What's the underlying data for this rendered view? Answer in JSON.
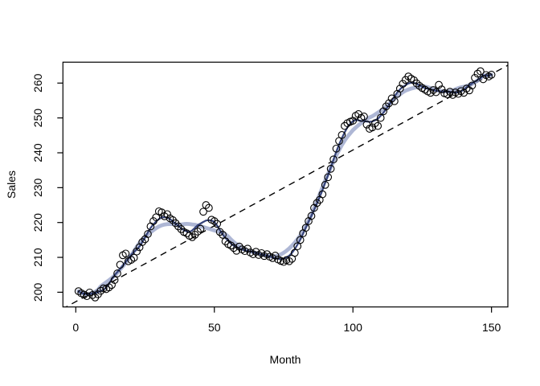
{
  "figure": {
    "background": "#ffffff",
    "frame_color": "#000000"
  },
  "chart_data": {
    "type": "scatter",
    "title": "",
    "xlabel": "Month",
    "ylabel": "Sales",
    "x_ticks": [
      0,
      50,
      100,
      150
    ],
    "y_ticks": [
      200,
      210,
      220,
      230,
      240,
      250,
      260
    ],
    "xlim": [
      -5,
      156
    ],
    "ylim": [
      195.8,
      266.2
    ],
    "grid": false,
    "legend": "none",
    "point_style": {
      "marker": "open-circle",
      "color": "#000000",
      "radius": 4.3,
      "stroke_width": 1.1
    },
    "smooth_line": {
      "name": "smooth-trend",
      "color": "#35437a",
      "width": 2.2,
      "window": 9
    },
    "smooth_band": {
      "name": "smooth-trend-band",
      "color": "#9aa5cb",
      "width": 4.8,
      "opacity": 0.8,
      "window": 17
    },
    "trend_line": {
      "name": "linear-trend",
      "style": "dashed",
      "color": "#000000",
      "intercept": 197.3,
      "slope": 0.435,
      "dash": [
        8,
        6
      ],
      "width": 1.4
    },
    "points": [
      [
        1,
        200.3
      ],
      [
        2,
        199.7
      ],
      [
        3,
        199.3
      ],
      [
        4,
        198.9
      ],
      [
        5,
        199.9
      ],
      [
        6,
        199.2
      ],
      [
        7,
        198.5
      ],
      [
        8,
        199.4
      ],
      [
        9,
        200.4
      ],
      [
        10,
        201.1
      ],
      [
        11,
        200.9
      ],
      [
        12,
        201.4
      ],
      [
        13,
        202.1
      ],
      [
        14,
        203.5
      ],
      [
        15,
        205.4
      ],
      [
        16,
        207.9
      ],
      [
        17,
        210.6
      ],
      [
        18,
        211.1
      ],
      [
        19,
        208.9
      ],
      [
        20,
        209.3
      ],
      [
        21,
        209.9
      ],
      [
        22,
        211.7
      ],
      [
        23,
        212.9
      ],
      [
        24,
        214.4
      ],
      [
        25,
        215.2
      ],
      [
        26,
        216.7
      ],
      [
        27,
        218.9
      ],
      [
        28,
        220.4
      ],
      [
        29,
        221.5
      ],
      [
        30,
        223.2
      ],
      [
        31,
        222.9
      ],
      [
        32,
        221.8
      ],
      [
        33,
        222.4
      ],
      [
        34,
        221.2
      ],
      [
        35,
        220.7
      ],
      [
        36,
        219.8
      ],
      [
        37,
        218.9
      ],
      [
        38,
        218.1
      ],
      [
        39,
        217.3
      ],
      [
        40,
        216.9
      ],
      [
        41,
        216.2
      ],
      [
        42,
        215.8
      ],
      [
        43,
        216.5
      ],
      [
        44,
        217.4
      ],
      [
        45,
        218.2
      ],
      [
        46,
        223.1
      ],
      [
        47,
        225.0
      ],
      [
        48,
        224.2
      ],
      [
        49,
        220.8
      ],
      [
        50,
        220.4
      ],
      [
        51,
        219.6
      ],
      [
        52,
        217.3
      ],
      [
        53,
        216.5
      ],
      [
        54,
        214.6
      ],
      [
        55,
        213.8
      ],
      [
        56,
        213.4
      ],
      [
        57,
        212.7
      ],
      [
        58,
        211.9
      ],
      [
        59,
        213.1
      ],
      [
        60,
        212.3
      ],
      [
        61,
        211.8
      ],
      [
        62,
        212.5
      ],
      [
        63,
        211.4
      ],
      [
        64,
        210.9
      ],
      [
        65,
        211.6
      ],
      [
        66,
        210.7
      ],
      [
        67,
        211.2
      ],
      [
        68,
        210.4
      ],
      [
        69,
        210.9
      ],
      [
        70,
        210.2
      ],
      [
        71,
        209.8
      ],
      [
        72,
        210.5
      ],
      [
        73,
        209.4
      ],
      [
        74,
        209.0
      ],
      [
        75,
        208.7
      ],
      [
        76,
        209.2
      ],
      [
        77,
        208.9
      ],
      [
        78,
        209.6
      ],
      [
        79,
        211.3
      ],
      [
        80,
        213.2
      ],
      [
        81,
        215.0
      ],
      [
        82,
        216.9
      ],
      [
        83,
        218.5
      ],
      [
        84,
        220.4
      ],
      [
        85,
        221.9
      ],
      [
        86,
        224.2
      ],
      [
        87,
        225.6
      ],
      [
        88,
        226.5
      ],
      [
        89,
        228.1
      ],
      [
        90,
        230.8
      ],
      [
        91,
        233.0
      ],
      [
        92,
        235.4
      ],
      [
        93,
        238.1
      ],
      [
        94,
        241.2
      ],
      [
        95,
        243.4
      ],
      [
        96,
        245.1
      ],
      [
        97,
        247.7
      ],
      [
        98,
        248.5
      ],
      [
        99,
        248.9
      ],
      [
        100,
        249.2
      ],
      [
        101,
        250.6
      ],
      [
        102,
        251.1
      ],
      [
        103,
        250.0
      ],
      [
        104,
        250.4
      ],
      [
        105,
        248.1
      ],
      [
        106,
        246.9
      ],
      [
        107,
        247.3
      ],
      [
        108,
        248.5
      ],
      [
        109,
        247.7
      ],
      [
        110,
        250.0
      ],
      [
        111,
        251.9
      ],
      [
        112,
        253.3
      ],
      [
        113,
        254.2
      ],
      [
        114,
        255.6
      ],
      [
        115,
        254.8
      ],
      [
        116,
        256.9
      ],
      [
        117,
        258.4
      ],
      [
        118,
        259.8
      ],
      [
        119,
        260.9
      ],
      [
        120,
        261.9
      ],
      [
        121,
        261.3
      ],
      [
        122,
        260.8
      ],
      [
        123,
        259.9
      ],
      [
        124,
        259.2
      ],
      [
        125,
        258.6
      ],
      [
        126,
        258.1
      ],
      [
        127,
        257.6
      ],
      [
        128,
        257.2
      ],
      [
        129,
        258.0
      ],
      [
        130,
        257.4
      ],
      [
        131,
        259.5
      ],
      [
        132,
        258.2
      ],
      [
        133,
        257.1
      ],
      [
        134,
        256.8
      ],
      [
        135,
        257.5
      ],
      [
        136,
        256.6
      ],
      [
        137,
        257.3
      ],
      [
        138,
        256.9
      ],
      [
        139,
        257.7
      ],
      [
        140,
        257.2
      ],
      [
        141,
        258.4
      ],
      [
        142,
        257.9
      ],
      [
        143,
        259.3
      ],
      [
        144,
        261.5
      ],
      [
        145,
        262.7
      ],
      [
        146,
        263.4
      ],
      [
        147,
        261.1
      ],
      [
        148,
        262.3
      ],
      [
        149,
        261.9
      ],
      [
        150,
        262.4
      ]
    ]
  }
}
